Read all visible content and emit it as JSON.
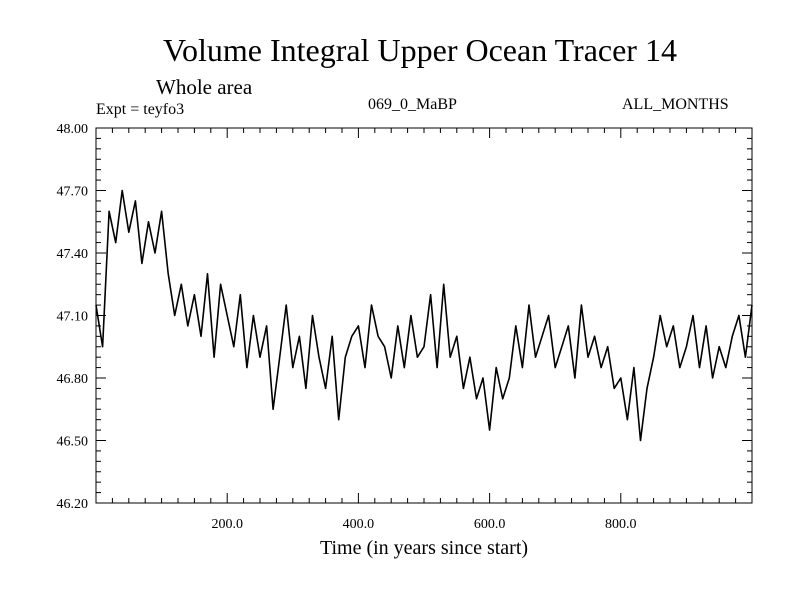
{
  "header": {
    "title": "Volume Integral Upper Ocean Tracer 14",
    "subtitle": "Whole area",
    "expt": "Expt = teyfo3",
    "center_label": "069_0_MaBP",
    "right_label": "ALL_MONTHS"
  },
  "chart_data": {
    "type": "line",
    "title": "Volume Integral Upper Ocean Tracer 14",
    "subtitle": "Whole area",
    "xlabel": "Time (in years since start)",
    "ylabel": "",
    "xlim": [
      0,
      1000
    ],
    "ylim": [
      46.2,
      48.0
    ],
    "xticks": [
      200,
      400,
      600,
      800
    ],
    "xtick_labels": [
      "200.0",
      "400.0",
      "600.0",
      "800.0"
    ],
    "yticks": [
      46.2,
      46.5,
      46.8,
      47.1,
      47.4,
      47.7,
      48.0
    ],
    "ytick_labels": [
      "46.20",
      "46.50",
      "46.80",
      "47.10",
      "47.40",
      "47.70",
      "48.00"
    ],
    "grid": false,
    "line_color": "#000000",
    "series": [
      {
        "name": "Volume Integral Upper Ocean Tracer 14",
        "x": [
          0,
          10,
          20,
          30,
          40,
          50,
          60,
          70,
          80,
          90,
          100,
          110,
          120,
          130,
          140,
          150,
          160,
          170,
          180,
          190,
          200,
          210,
          220,
          230,
          240,
          250,
          260,
          270,
          280,
          290,
          300,
          310,
          320,
          330,
          340,
          350,
          360,
          370,
          380,
          390,
          400,
          410,
          420,
          430,
          440,
          450,
          460,
          470,
          480,
          490,
          500,
          510,
          520,
          530,
          540,
          550,
          560,
          570,
          580,
          590,
          600,
          610,
          620,
          630,
          640,
          650,
          660,
          670,
          680,
          690,
          700,
          710,
          720,
          730,
          740,
          750,
          760,
          770,
          780,
          790,
          800,
          810,
          820,
          830,
          840,
          850,
          860,
          870,
          880,
          890,
          900,
          910,
          920,
          930,
          940,
          950,
          960,
          970,
          980,
          990,
          1000
        ],
        "y": [
          47.15,
          46.95,
          47.6,
          47.45,
          47.7,
          47.5,
          47.65,
          47.35,
          47.55,
          47.4,
          47.6,
          47.3,
          47.1,
          47.25,
          47.05,
          47.2,
          47.0,
          47.3,
          46.9,
          47.25,
          47.1,
          46.95,
          47.2,
          46.85,
          47.1,
          46.9,
          47.05,
          46.65,
          46.9,
          47.15,
          46.85,
          47.0,
          46.75,
          47.1,
          46.9,
          46.75,
          47.0,
          46.6,
          46.9,
          47.0,
          47.05,
          46.85,
          47.15,
          47.0,
          46.95,
          46.8,
          47.05,
          46.85,
          47.1,
          46.9,
          46.95,
          47.2,
          46.85,
          47.25,
          46.9,
          47.0,
          46.75,
          46.9,
          46.7,
          46.8,
          46.55,
          46.85,
          46.7,
          46.8,
          47.05,
          46.85,
          47.15,
          46.9,
          47.0,
          47.1,
          46.85,
          46.95,
          47.05,
          46.8,
          47.15,
          46.9,
          47.0,
          46.85,
          46.95,
          46.75,
          46.8,
          46.6,
          46.85,
          46.5,
          46.75,
          46.9,
          47.1,
          46.95,
          47.05,
          46.85,
          46.95,
          47.1,
          46.85,
          47.05,
          46.8,
          46.95,
          46.85,
          47.0,
          47.1,
          46.9,
          47.15
        ]
      }
    ]
  }
}
